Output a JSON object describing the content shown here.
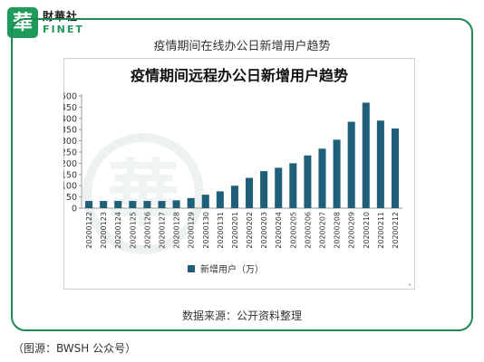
{
  "logo": {
    "glyph": "華",
    "name_cn": "財華社",
    "name_en": "FINET"
  },
  "header": {
    "title": "疫情期间在线办公日新增用户趋势"
  },
  "chart_data": {
    "type": "bar",
    "title": "疫情期间远程办公日新增用户趋势",
    "categories": [
      "20200122",
      "20200123",
      "20200124",
      "20200125",
      "20200126",
      "20200127",
      "20200128",
      "20200129",
      "20200130",
      "20200131",
      "20200201",
      "20200202",
      "20200203",
      "20200204",
      "20200205",
      "20200206",
      "20200207",
      "20200208",
      "20200209",
      "20200210",
      "20200211",
      "20200212"
    ],
    "series": [
      {
        "name": "新增用户（万）",
        "values": [
          32,
          32,
          32,
          32,
          32,
          32,
          35,
          45,
          60,
          75,
          100,
          135,
          165,
          180,
          200,
          235,
          265,
          305,
          385,
          470,
          390,
          355
        ]
      }
    ],
    "xlabel": "",
    "ylabel": "",
    "ylim": [
      0,
      500
    ],
    "yticks": [
      0,
      50,
      100,
      150,
      200,
      250,
      300,
      350,
      400,
      450,
      500
    ],
    "grid": false,
    "legend": "bottom",
    "bar_color": "#1f5f7a"
  },
  "footer": {
    "source": "数据来源：公开资料整理",
    "caption": "（图源：BWSH 公众号）"
  },
  "colors": {
    "frame": "#1c8a52",
    "bar": "#1f5f7a",
    "watermark": "#dfe7e4"
  }
}
